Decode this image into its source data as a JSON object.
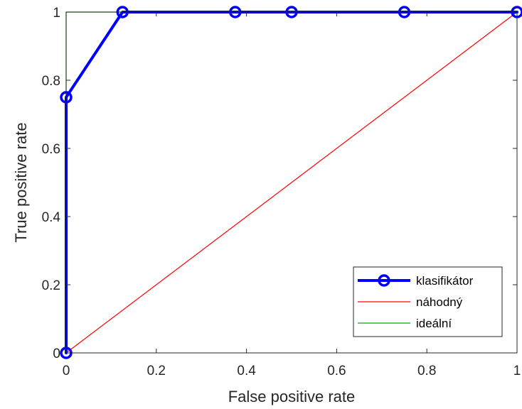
{
  "chart_data": {
    "type": "line",
    "xlabel": "False positive rate",
    "ylabel": "True positive rate",
    "xlim": [
      0,
      1
    ],
    "ylim": [
      0,
      1
    ],
    "xticks": [
      0,
      0.2,
      0.4,
      0.6,
      0.8,
      1
    ],
    "yticks": [
      0,
      0.2,
      0.4,
      0.6,
      0.8,
      1
    ],
    "xtick_labels": [
      "0",
      "0.2",
      "0.4",
      "0.6",
      "0.8",
      "1"
    ],
    "ytick_labels": [
      "0",
      "0.2",
      "0.4",
      "0.6",
      "0.8",
      "1"
    ],
    "grid": false,
    "legend_position": "bottom-right",
    "series": [
      {
        "name": "klasifikátor",
        "color": "#0000ff",
        "marker": "circle",
        "points": [
          [
            0,
            0
          ],
          [
            0,
            0.75
          ],
          [
            0.125,
            1
          ],
          [
            0.375,
            1
          ],
          [
            0.5,
            1
          ],
          [
            0.75,
            1
          ],
          [
            1,
            1
          ]
        ]
      },
      {
        "name": "náhodný",
        "color": "#ff0000",
        "marker": "none",
        "points": [
          [
            0,
            0
          ],
          [
            1,
            1
          ]
        ]
      },
      {
        "name": "ideální",
        "color": "#00aa00",
        "marker": "none",
        "points": [
          [
            0,
            0
          ],
          [
            0,
            1
          ],
          [
            1,
            1
          ]
        ]
      }
    ]
  }
}
